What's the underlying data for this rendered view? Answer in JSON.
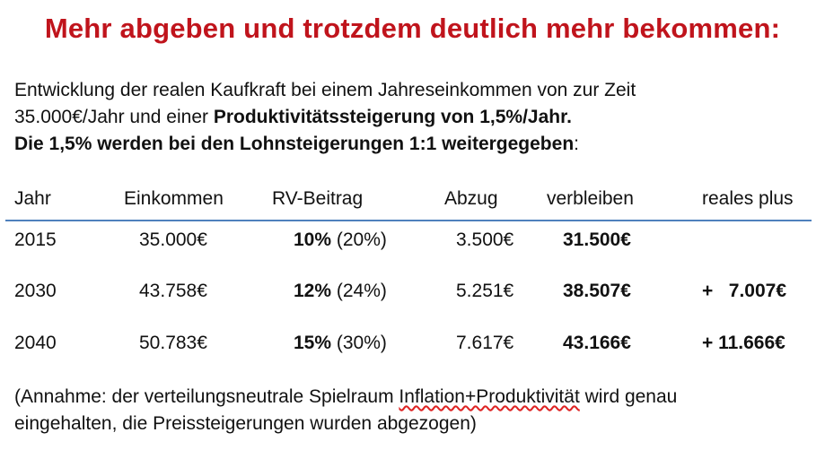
{
  "title": "Mehr abgeben und trotzdem deutlich mehr bekommen:",
  "intro": {
    "line1": "Entwicklung  der realen Kaufkraft bei einem Jahreseinkommen von zur Zeit",
    "line2_plain": "35.000€/Jahr und einer ",
    "line2_bold": "Produktivitätssteigerung von 1,5%/Jahr.",
    "line3_bold": "Die 1,5% werden bei den Lohnsteigerungen 1:1 weitergegeben",
    "line3_tail": ":"
  },
  "table": {
    "headers": [
      "Jahr",
      "Einkommen",
      "RV-Beitrag",
      "Abzug",
      "verbleiben",
      "reales plus"
    ],
    "rows": [
      {
        "year": "2015",
        "income": "35.000€",
        "rv_bold": "10%",
        "rv_paren": " (20%)",
        "deduction": "3.500€",
        "remaining": "31.500€",
        "plus": ""
      },
      {
        "year": "2030",
        "income": "43.758€",
        "rv_bold": "12%",
        "rv_paren": " (24%)",
        "deduction": "5.251€",
        "remaining": "38.507€",
        "plus": "+   7.007€"
      },
      {
        "year": "2040",
        "income": "50.783€",
        "rv_bold": "15%",
        "rv_paren": " (30%)",
        "deduction": "7.617€",
        "remaining": "43.166€",
        "plus": "+ 11.666€"
      }
    ]
  },
  "note": {
    "line1_a": "(Annahme: der verteilungsneutrale Spielraum ",
    "line1_b": "Inflation+Produktivität",
    "line1_c": " wird genau",
    "line2": "eingehalten, die Preissteigerungen wurden abgezogen)"
  },
  "colors": {
    "title": "#c0141c",
    "rule": "#4f81bd"
  }
}
